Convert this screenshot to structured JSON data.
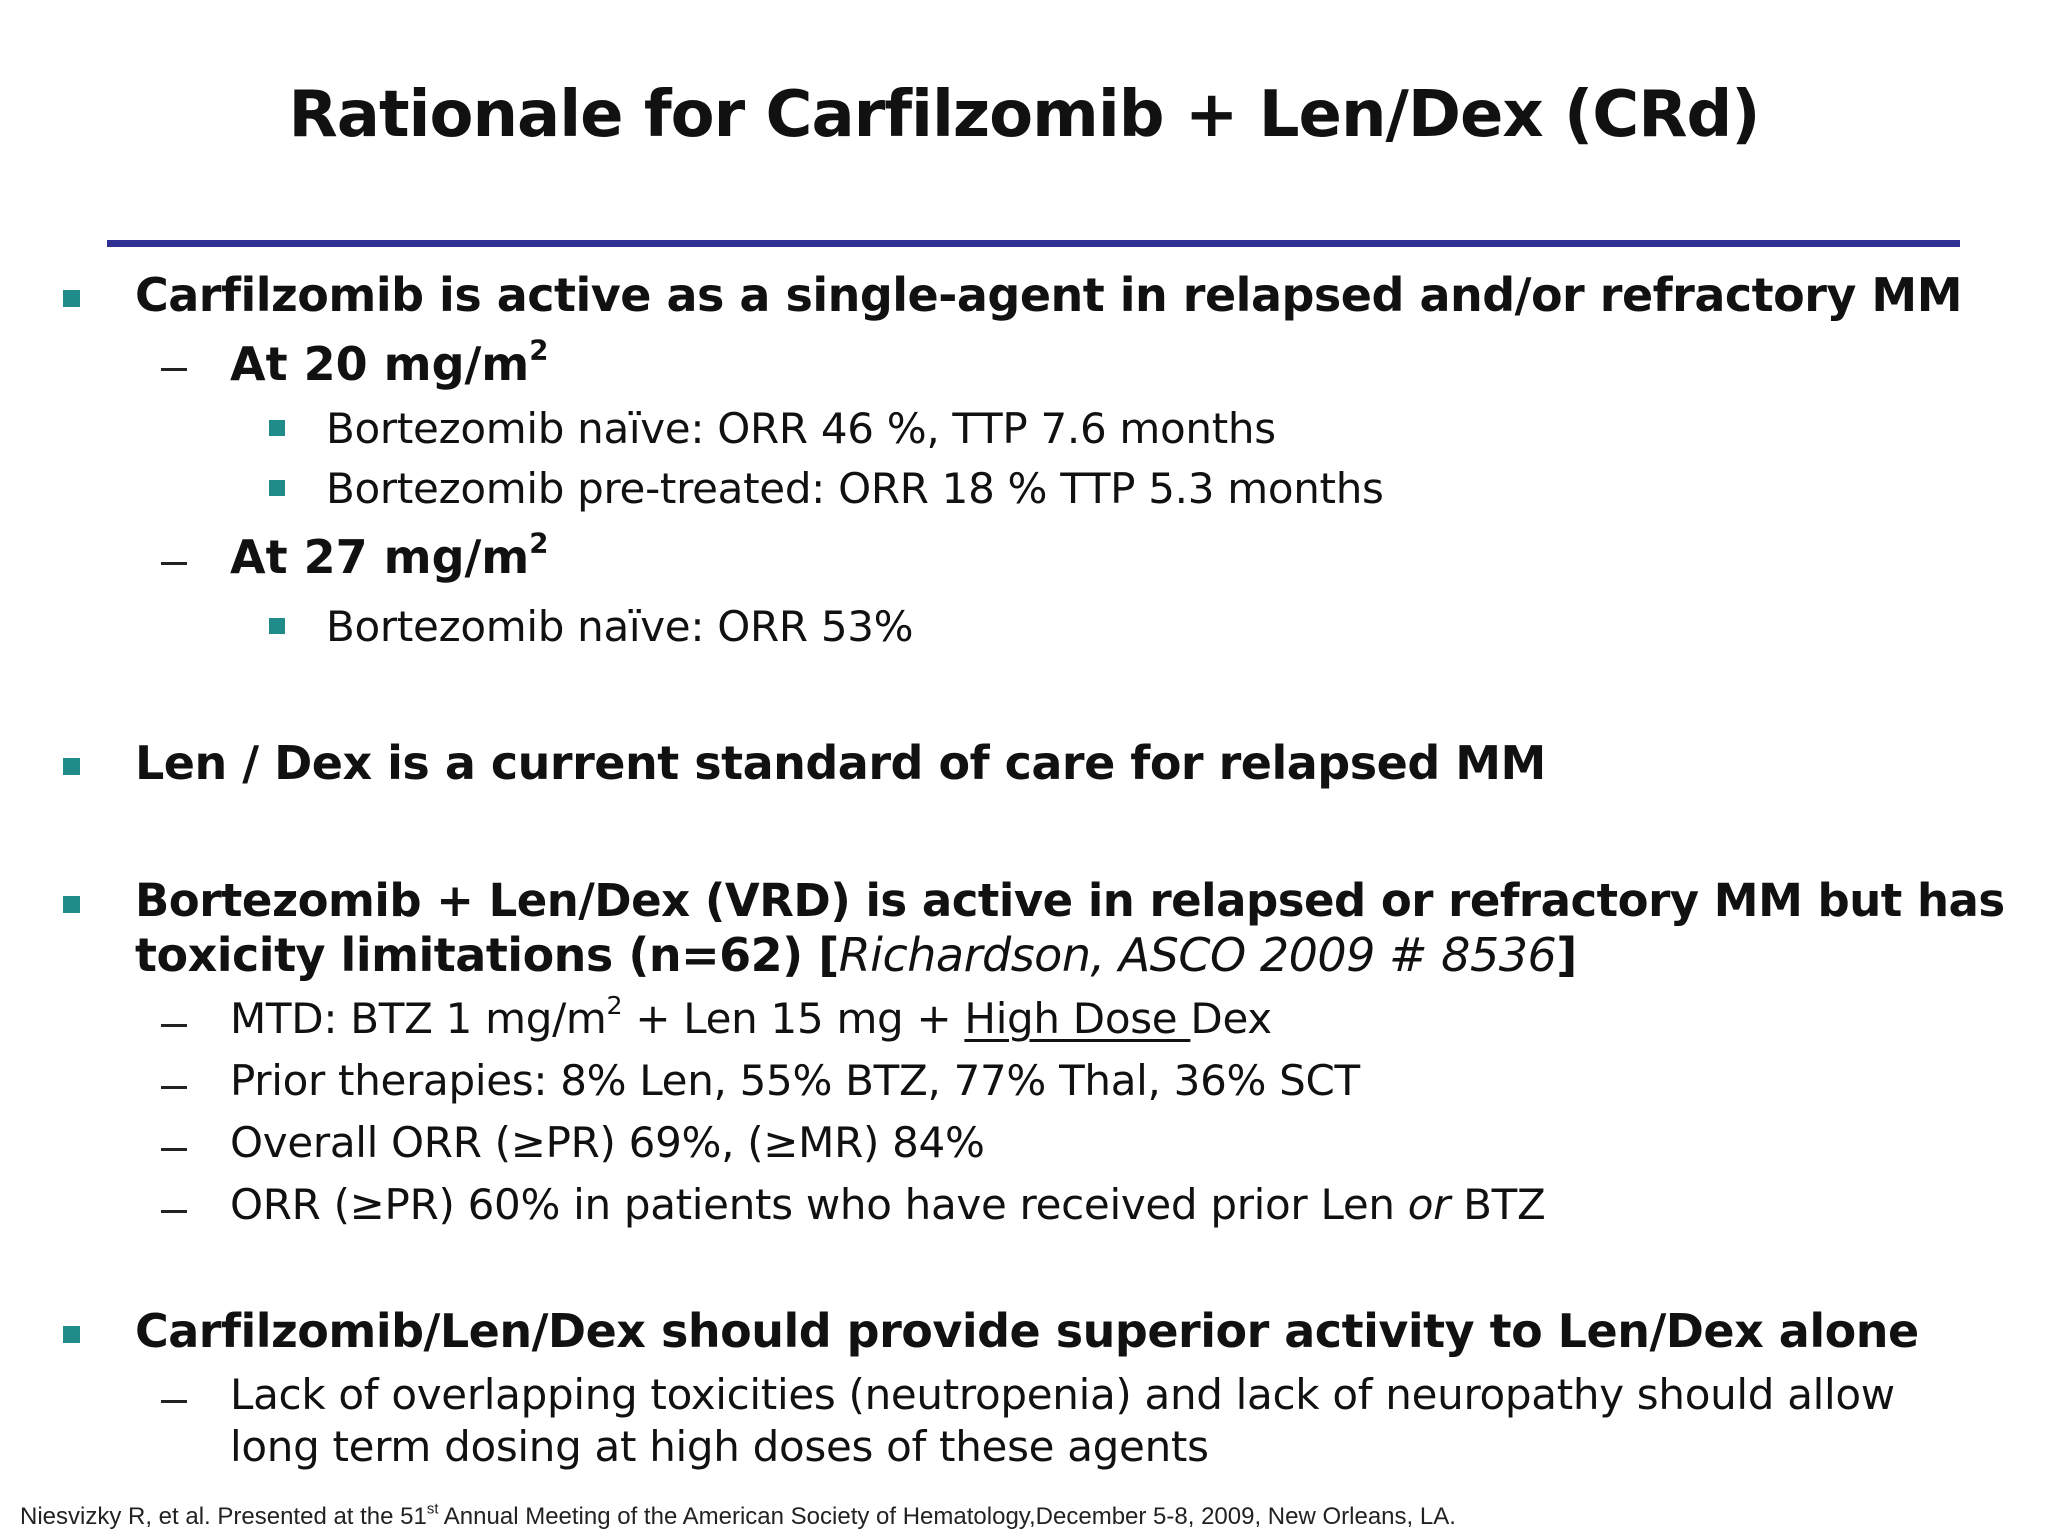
{
  "title": "Rationale for Carfilzomib + Len/Dex (CRd)",
  "colors": {
    "rule": "#2e3192",
    "bullet": "#1f8c8a"
  },
  "icons": {
    "level1_bullet": "square-bullet",
    "level2_bullet": "en-dash",
    "level3_bullet": "square-bullet"
  },
  "b1": {
    "text": "Carfilzomib is active as a single-agent in relapsed and/or refractory MM",
    "d1": {
      "prefix": "At 20 mg/m",
      "sup": "2"
    },
    "d1_items": [
      "Bortezomib naïve:   ORR 46 %, TTP 7.6 months",
      "Bortezomib pre-treated: ORR 18 % TTP 5.3 months"
    ],
    "d2": {
      "prefix": "At 27 mg/m",
      "sup": "2"
    },
    "d2_items": [
      "Bortezomib naïve:   ORR 53%"
    ]
  },
  "b2": {
    "text": "Len / Dex is a current standard of care for relapsed MM"
  },
  "b3": {
    "line1": "Bortezomib + Len/Dex  (VRD) is active in relapsed or refractory MM but has",
    "line2_bold": "toxicity limitations (n=62) [",
    "line2_italic": "Richardson,  ASCO 2009 # 8536",
    "line2_end": "]",
    "mtd": {
      "prefix": "MTD: BTZ 1 mg/m",
      "sup": "2",
      "mid": " + Len 15 mg + ",
      "underlined": "High Dose ",
      "suffix": "Dex"
    },
    "prior": "Prior therapies: 8% Len,  55% BTZ, 77% Thal, 36% SCT",
    "overall": "Overall ORR (≥PR)  69%,  (≥MR) 84%",
    "orr": {
      "prefix": "ORR (≥PR) 60% in patients who have received prior Len ",
      "italic": "or",
      "suffix": " BTZ"
    }
  },
  "b4": {
    "text": "Carfilzomib/Len/Dex should provide superior activity to Len/Dex alone",
    "sub_line1": "Lack of overlapping toxicities (neutropenia) and lack of neuropathy should allow",
    "sub_line2": "long term dosing at high doses of these agents"
  },
  "footer": {
    "prefix": "Niesvizky R, et al. Presented at the 51",
    "sup": "st",
    "suffix": " Annual Meeting of the American Society of Hematology,December 5-8, 2009, New Orleans, LA."
  }
}
